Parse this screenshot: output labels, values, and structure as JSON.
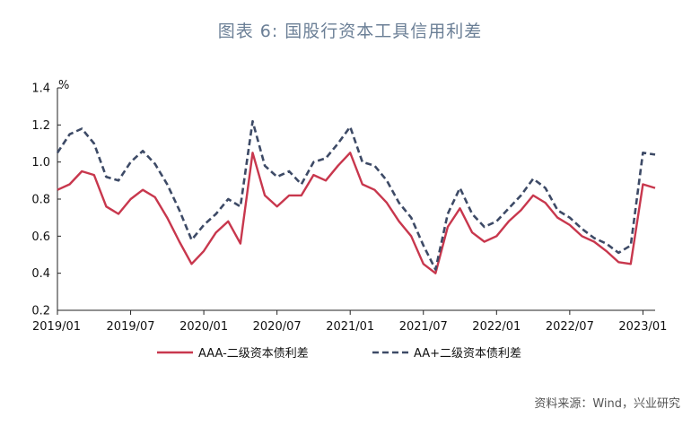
{
  "title": "图表 6:   国股行资本工具信用利差",
  "source": "资料来源：Wind，兴业研究",
  "chart_data": {
    "type": "line",
    "unit_label": "%",
    "ylim": [
      0.2,
      1.4
    ],
    "yticks": [
      "0.2",
      "0.4",
      "0.6",
      "0.8",
      "1.0",
      "1.2",
      "1.4"
    ],
    "x_tick_labels": [
      "2019/01",
      "2019/07",
      "2020/01",
      "2020/07",
      "2021/01",
      "2021/07",
      "2022/01",
      "2022/07",
      "2023/01"
    ],
    "xlim": [
      "2019/01",
      "2023/02"
    ],
    "grid": false,
    "legend_position": "bottom",
    "series": [
      {
        "name": "AAA-二级资本债利差",
        "color": "#c8374d",
        "style": "solid",
        "points": [
          [
            "2019/01",
            0.85
          ],
          [
            "2019/02",
            0.88
          ],
          [
            "2019/03",
            0.95
          ],
          [
            "2019/04",
            0.93
          ],
          [
            "2019/05",
            0.76
          ],
          [
            "2019/06",
            0.72
          ],
          [
            "2019/07",
            0.8
          ],
          [
            "2019/08",
            0.85
          ],
          [
            "2019/09",
            0.81
          ],
          [
            "2019/10",
            0.7
          ],
          [
            "2019/11",
            0.57
          ],
          [
            "2019/12",
            0.45
          ],
          [
            "2020/01",
            0.52
          ],
          [
            "2020/02",
            0.62
          ],
          [
            "2020/03",
            0.68
          ],
          [
            "2020/04",
            0.56
          ],
          [
            "2020/05",
            1.05
          ],
          [
            "2020/06",
            0.82
          ],
          [
            "2020/07",
            0.76
          ],
          [
            "2020/08",
            0.82
          ],
          [
            "2020/09",
            0.82
          ],
          [
            "2020/10",
            0.93
          ],
          [
            "2020/11",
            0.9
          ],
          [
            "2020/12",
            0.98
          ],
          [
            "2021/01",
            1.05
          ],
          [
            "2021/02",
            0.88
          ],
          [
            "2021/03",
            0.85
          ],
          [
            "2021/04",
            0.78
          ],
          [
            "2021/05",
            0.68
          ],
          [
            "2021/06",
            0.6
          ],
          [
            "2021/07",
            0.45
          ],
          [
            "2021/08",
            0.4
          ],
          [
            "2021/09",
            0.65
          ],
          [
            "2021/10",
            0.75
          ],
          [
            "2021/11",
            0.62
          ],
          [
            "2021/12",
            0.57
          ],
          [
            "2022/01",
            0.6
          ],
          [
            "2022/02",
            0.68
          ],
          [
            "2022/03",
            0.74
          ],
          [
            "2022/04",
            0.82
          ],
          [
            "2022/05",
            0.78
          ],
          [
            "2022/06",
            0.7
          ],
          [
            "2022/07",
            0.66
          ],
          [
            "2022/08",
            0.6
          ],
          [
            "2022/09",
            0.57
          ],
          [
            "2022/10",
            0.52
          ],
          [
            "2022/11",
            0.46
          ],
          [
            "2022/12",
            0.45
          ],
          [
            "2023/01",
            0.88
          ],
          [
            "2023/02",
            0.86
          ]
        ]
      },
      {
        "name": "AA+二级资本债利差",
        "color": "#3d4a66",
        "style": "dashed",
        "points": [
          [
            "2019/01",
            1.05
          ],
          [
            "2019/02",
            1.15
          ],
          [
            "2019/03",
            1.18
          ],
          [
            "2019/04",
            1.1
          ],
          [
            "2019/05",
            0.92
          ],
          [
            "2019/06",
            0.9
          ],
          [
            "2019/07",
            1.0
          ],
          [
            "2019/08",
            1.06
          ],
          [
            "2019/09",
            0.99
          ],
          [
            "2019/10",
            0.88
          ],
          [
            "2019/11",
            0.74
          ],
          [
            "2019/12",
            0.58
          ],
          [
            "2020/01",
            0.66
          ],
          [
            "2020/02",
            0.72
          ],
          [
            "2020/03",
            0.8
          ],
          [
            "2020/04",
            0.76
          ],
          [
            "2020/05",
            1.22
          ],
          [
            "2020/06",
            0.98
          ],
          [
            "2020/07",
            0.92
          ],
          [
            "2020/08",
            0.95
          ],
          [
            "2020/09",
            0.88
          ],
          [
            "2020/10",
            1.0
          ],
          [
            "2020/11",
            1.02
          ],
          [
            "2020/12",
            1.1
          ],
          [
            "2021/01",
            1.19
          ],
          [
            "2021/02",
            1.0
          ],
          [
            "2021/03",
            0.98
          ],
          [
            "2021/04",
            0.9
          ],
          [
            "2021/05",
            0.78
          ],
          [
            "2021/06",
            0.7
          ],
          [
            "2021/07",
            0.55
          ],
          [
            "2021/08",
            0.42
          ],
          [
            "2021/09",
            0.72
          ],
          [
            "2021/10",
            0.86
          ],
          [
            "2021/11",
            0.72
          ],
          [
            "2021/12",
            0.65
          ],
          [
            "2022/01",
            0.68
          ],
          [
            "2022/02",
            0.75
          ],
          [
            "2022/03",
            0.82
          ],
          [
            "2022/04",
            0.91
          ],
          [
            "2022/05",
            0.86
          ],
          [
            "2022/06",
            0.74
          ],
          [
            "2022/07",
            0.7
          ],
          [
            "2022/08",
            0.64
          ],
          [
            "2022/09",
            0.59
          ],
          [
            "2022/10",
            0.56
          ],
          [
            "2022/11",
            0.51
          ],
          [
            "2022/12",
            0.55
          ],
          [
            "2023/01",
            1.05
          ],
          [
            "2023/02",
            1.04
          ]
        ]
      }
    ]
  }
}
